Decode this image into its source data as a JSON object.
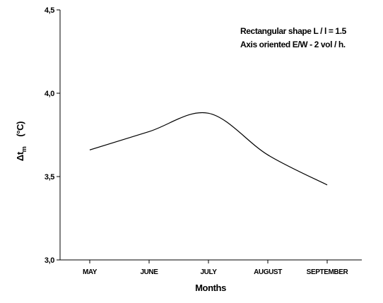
{
  "chart_data": {
    "type": "line",
    "annotations": [
      "Rectangular shape L / l = 1.5",
      "Axis oriented E/W - 2 vol / h."
    ],
    "x_label": "Months",
    "y_label": {
      "main": "Δt",
      "sub": "m",
      "unit": "(°C)"
    },
    "categories": [
      "MAY",
      "JUNE",
      "JULY",
      "AUGUST",
      "SEPTEMBER"
    ],
    "values": [
      3.66,
      3.77,
      3.88,
      3.63,
      3.45
    ],
    "color": "#000000",
    "ylim": [
      3.0,
      4.5
    ],
    "yticks": [
      {
        "value": 3.0,
        "label": "3,0"
      },
      {
        "value": 3.5,
        "label": "3,5"
      },
      {
        "value": 4.0,
        "label": "4,0"
      },
      {
        "value": 4.5,
        "label": "4,5"
      }
    ]
  }
}
